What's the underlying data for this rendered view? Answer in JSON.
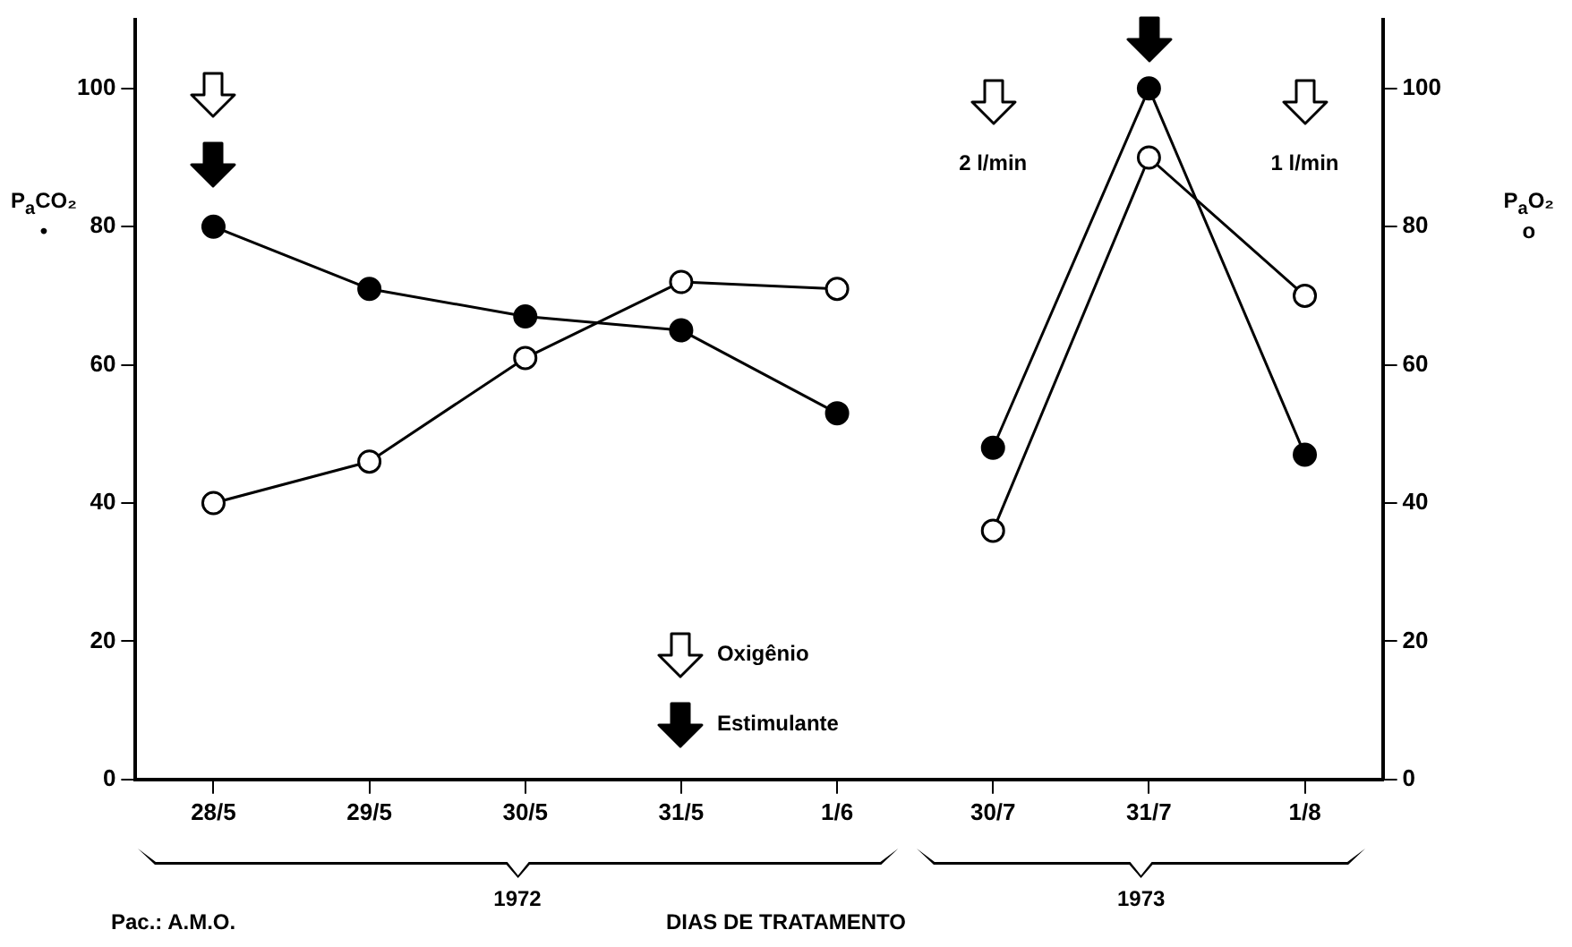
{
  "chart_data": {
    "type": "line",
    "xlabel": "DIAS DE TRATAMENTO",
    "ylabel": "P$_{a}$CO₂\n•",
    "y2label": "P$_{a}$O₂\no",
    "categories": [
      "28/5",
      "29/5",
      "30/5",
      "31/5",
      "1/6",
      "30/7",
      "31/7",
      "1/8"
    ],
    "series": [
      {
        "color": "#000000",
        "values": [
          80,
          71,
          67,
          65,
          53,
          null,
          null,
          null
        ]
      },
      {
        "color": "#000000",
        "values": [
          null,
          null,
          null,
          null,
          null,
          48,
          100,
          47
        ]
      },
      {
        "color": "#000000",
        "axis": "y2",
        "values": [
          40,
          46,
          61,
          72,
          71,
          null,
          null,
          null
        ]
      },
      {
        "color": "#000000",
        "axis": "y2",
        "values": [
          null,
          null,
          null,
          null,
          null,
          36,
          90,
          70
        ]
      }
    ],
    "ylim": [
      0,
      110
    ],
    "yticks": [
      0,
      20,
      40,
      60,
      80,
      100
    ],
    "y2lim": [
      0,
      110
    ],
    "y2ticks": [
      0,
      20,
      40,
      60,
      80,
      100
    ],
    "grid": false,
    "marker": "circle",
    "line_style": "solid",
    "annotations": [
      "2 l/min",
      "1 l/min",
      "1972",
      "1973",
      "Oxigênio",
      "Estimulante",
      "Pac.: A.M.O."
    ]
  }
}
